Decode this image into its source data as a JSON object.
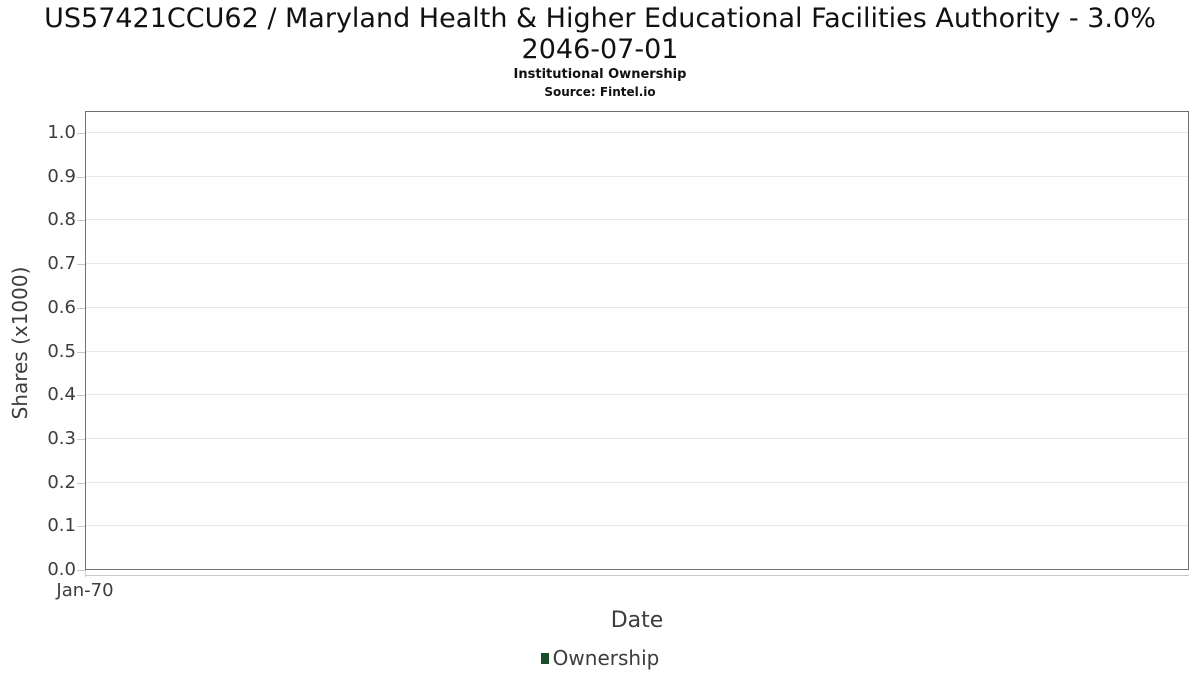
{
  "title": {
    "line1": "US57421CCU62 / Maryland Health & Higher Educational Facilities Authority - 3.0%",
    "line2": "2046-07-01",
    "subtitle": "Institutional Ownership",
    "source": "Source: Fintel.io"
  },
  "axes": {
    "y_title": "Shares (x1000)",
    "x_title": "Date",
    "y_ticks": [
      "0.0",
      "0.1",
      "0.2",
      "0.3",
      "0.4",
      "0.5",
      "0.6",
      "0.7",
      "0.8",
      "0.9",
      "1.0"
    ],
    "x_ticks": [
      "Jan-70"
    ]
  },
  "legend": {
    "items": [
      {
        "label": "Ownership",
        "color": "#1d4b2d",
        "marker": "square-swatch-icon"
      }
    ]
  },
  "colors": {
    "plot_border": "#6f6f6f",
    "gridline": "#e8e8e8",
    "tick": "#c9c9c9",
    "axis_text": "#3d3d3d",
    "title_text": "#111111",
    "legend_swatch": "#1d4b2d",
    "background": "#ffffff"
  },
  "chart_data": {
    "type": "line",
    "title": "US57421CCU62 / Maryland Health & Higher Educational Facilities Authority - 3.0% 2046-07-01",
    "subtitle": "Institutional Ownership",
    "source": "Source: Fintel.io",
    "xlabel": "Date",
    "ylabel": "Shares (x1000)",
    "x_tick_labels": [
      "Jan-70"
    ],
    "y_tick_labels": [
      0.0,
      0.1,
      0.2,
      0.3,
      0.4,
      0.5,
      0.6,
      0.7,
      0.8,
      0.9,
      1.0
    ],
    "ylim": [
      0.0,
      1.05
    ],
    "grid": "horizontal-only",
    "legend_position": "bottom-center",
    "series": [
      {
        "name": "Ownership",
        "color": "#1d4b2d",
        "x": [],
        "y": []
      }
    ]
  }
}
